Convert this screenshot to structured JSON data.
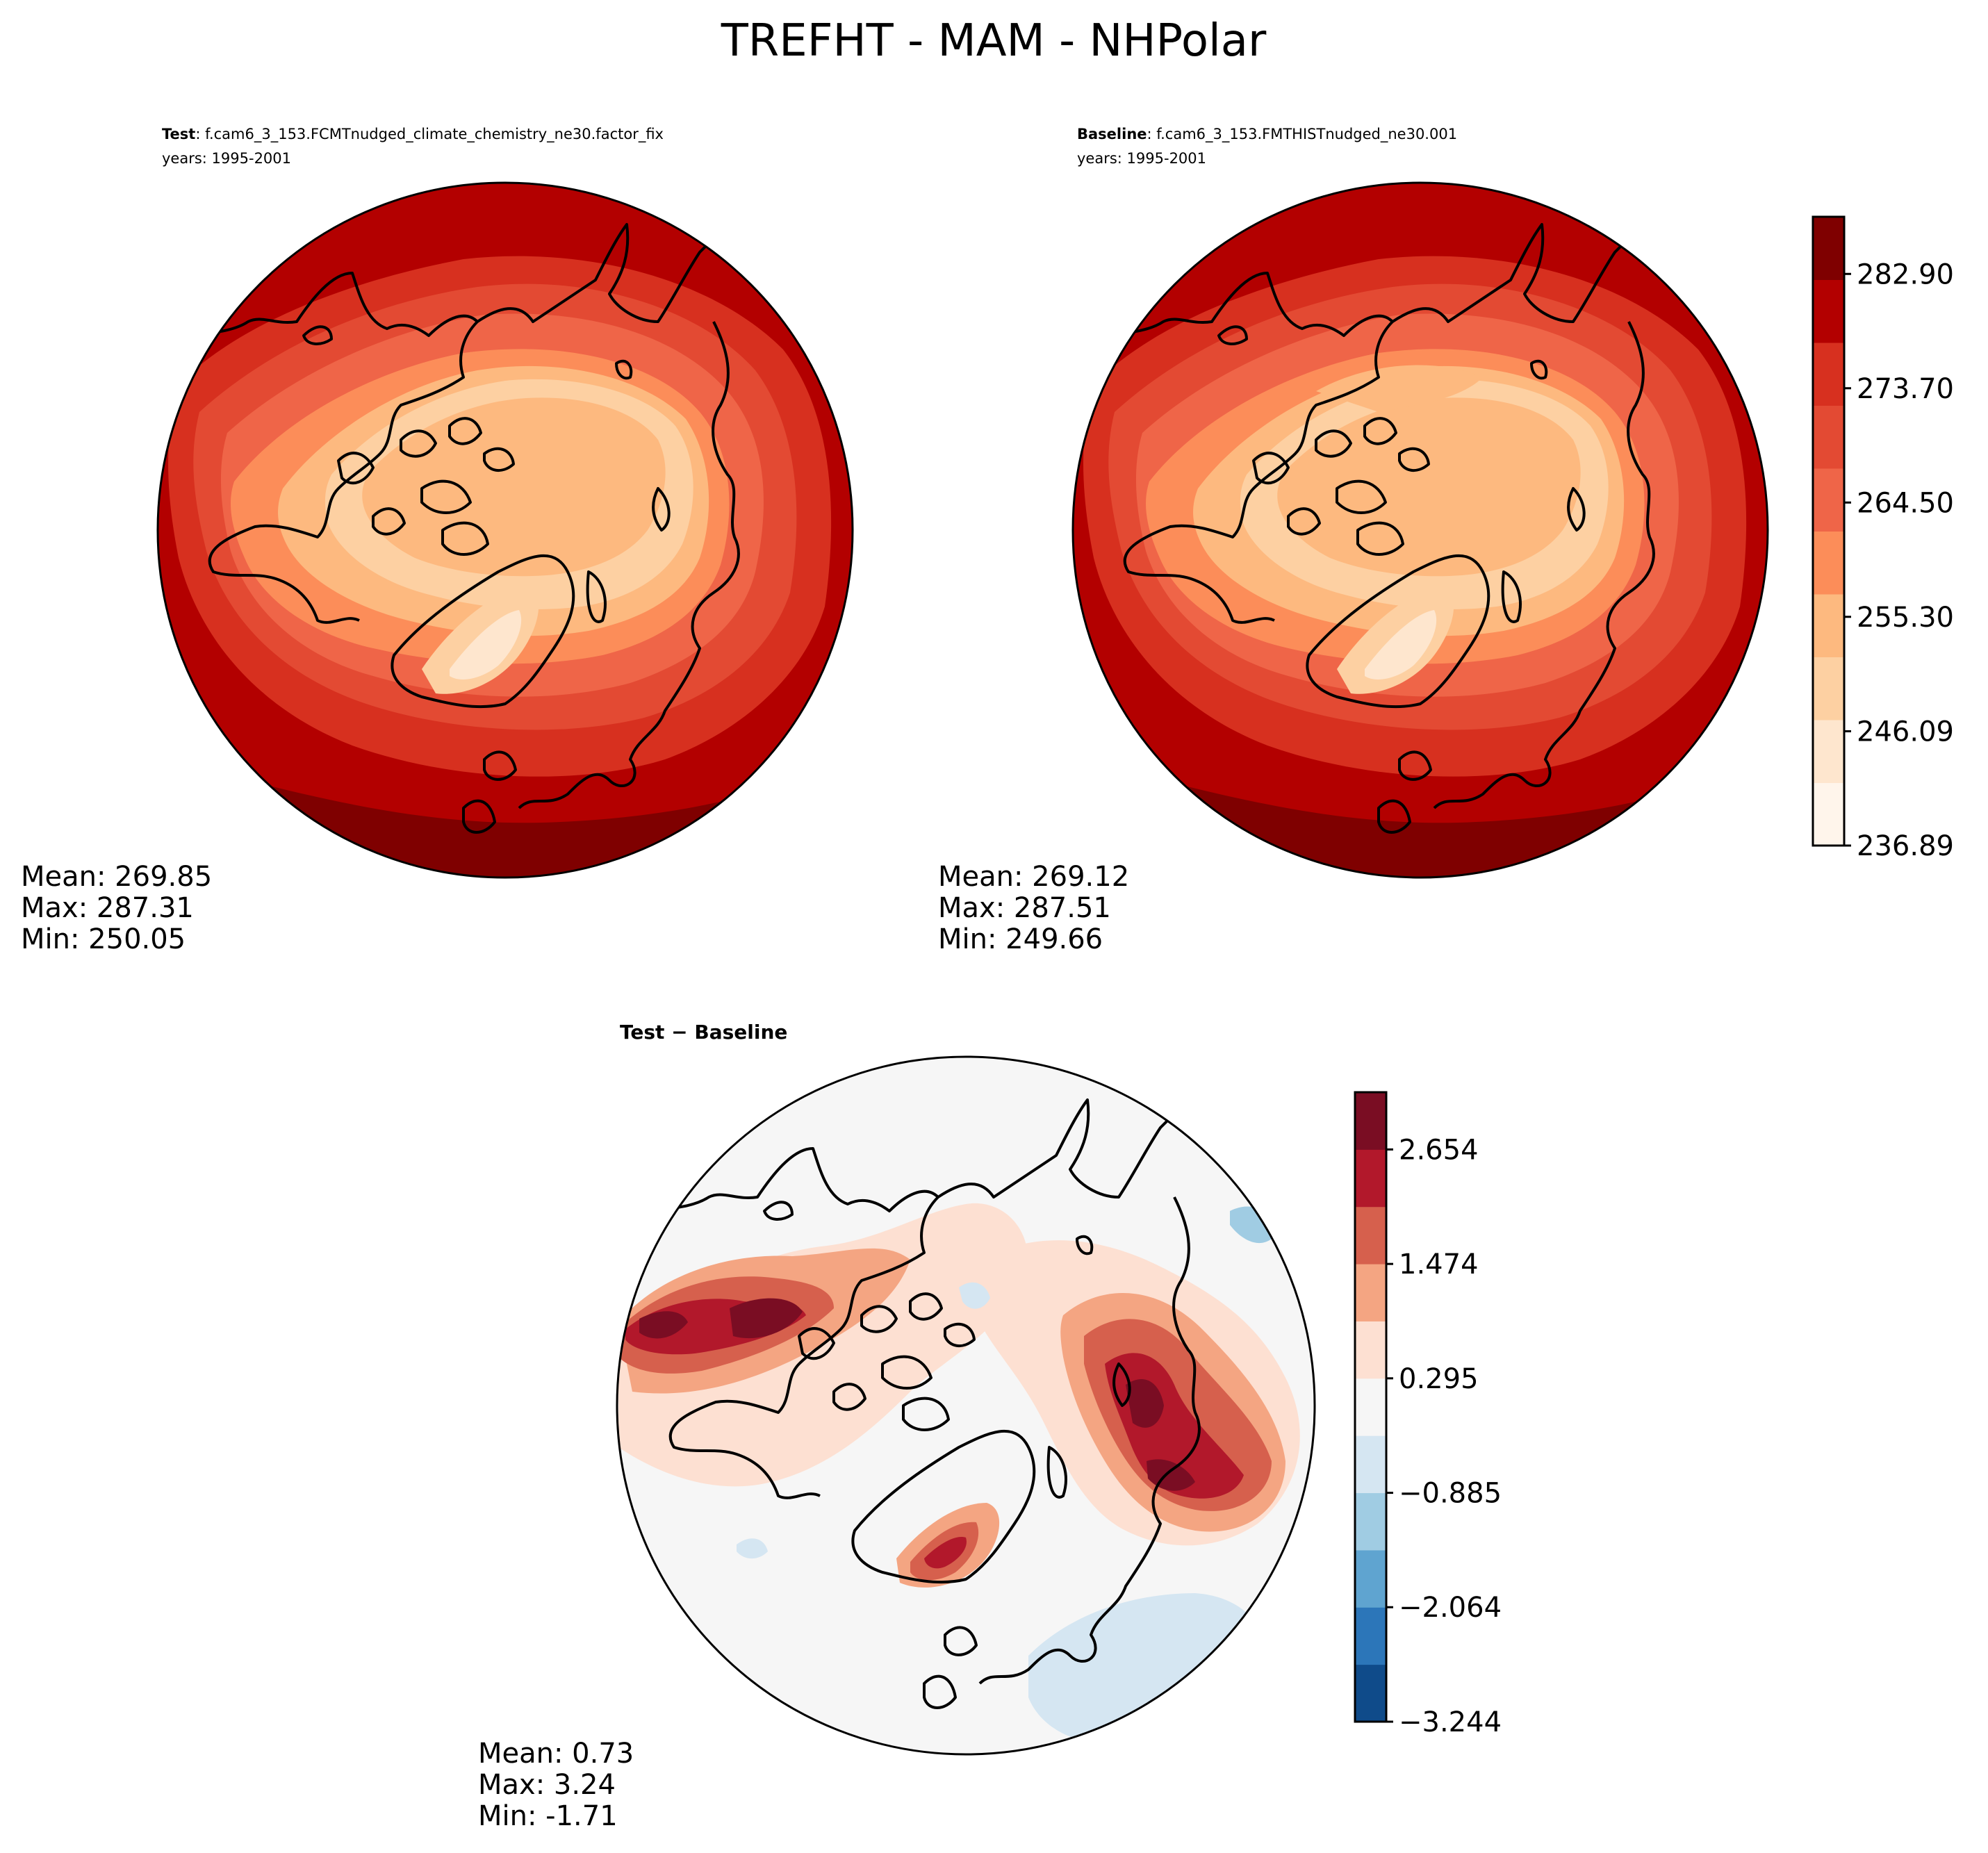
{
  "title": "TREFHT - MAM - NHPolar",
  "panels": [
    {
      "id": "test",
      "label_bold": "Test",
      "label_rest": ": f.cam6_3_153.FCMTnudged_climate_chemistry_ne30.factor_fix",
      "years": "years: 1995-2001",
      "stats": [
        "Mean: 269.85",
        "Max: 287.31",
        "Min: 250.05"
      ]
    },
    {
      "id": "baseline",
      "label_bold": "Baseline",
      "label_rest": ": f.cam6_3_153.FMTHISTnudged_ne30.001",
      "years": "years: 1995-2001",
      "stats": [
        "Mean: 269.12",
        "Max: 287.51",
        "Min: 249.66"
      ]
    },
    {
      "id": "diff",
      "label_bold": "Test − Baseline",
      "stats": [
        "Mean:  0.73",
        "Max:  3.24",
        "Min: -1.71"
      ]
    }
  ],
  "colorbars": {
    "absolute": {
      "colors": [
        "#fff5eb",
        "#fee6ce",
        "#fdd0a2",
        "#fdb97f",
        "#fc8d59",
        "#ef6548",
        "#e34a33",
        "#d7301f",
        "#b30000",
        "#7f0000"
      ],
      "tick_labels": [
        "236.89",
        "246.09",
        "255.30",
        "264.50",
        "273.70",
        "282.90"
      ],
      "tick_values": [
        236.89,
        246.09,
        255.3,
        264.5,
        273.7,
        282.9
      ],
      "range": [
        236.89,
        287.5
      ]
    },
    "difference": {
      "colors": [
        "#0f4b8a",
        "#2c76b9",
        "#5fa4d0",
        "#a0cce3",
        "#d5e6f2",
        "#f6f6f6",
        "#fde0d2",
        "#f4a582",
        "#d6604d",
        "#b2182b",
        "#7a0d23"
      ],
      "tick_labels": [
        "−3.244",
        "−2.064",
        "−0.885",
        "0.295",
        "1.474",
        "2.654"
      ],
      "tick_values": [
        -3.244,
        -2.064,
        -0.885,
        0.295,
        1.474,
        2.654
      ],
      "range": [
        -3.244,
        3.244
      ]
    }
  },
  "chart_data": [
    {
      "type": "heatmap",
      "projection": "north-polar-stereographic",
      "title": "Test: f.cam6_3_153.FCMTnudged_climate_chemistry_ne30.factor_fix",
      "variable": "TREFHT",
      "season": "MAM",
      "years": "1995-2001",
      "mean": 269.85,
      "max": 287.31,
      "min": 250.05,
      "colorbar_ticks": [
        236.89,
        246.09,
        255.3,
        264.5,
        273.7,
        282.9
      ]
    },
    {
      "type": "heatmap",
      "projection": "north-polar-stereographic",
      "title": "Baseline: f.cam6_3_153.FMTHISTnudged_ne30.001",
      "variable": "TREFHT",
      "season": "MAM",
      "years": "1995-2001",
      "mean": 269.12,
      "max": 287.51,
      "min": 249.66,
      "colorbar_ticks": [
        236.89,
        246.09,
        255.3,
        264.5,
        273.7,
        282.9
      ]
    },
    {
      "type": "heatmap",
      "projection": "north-polar-stereographic",
      "title": "Test − Baseline",
      "mean": 0.73,
      "max": 3.24,
      "min": -1.71,
      "colorbar_ticks": [
        -3.244,
        -2.064,
        -0.885,
        0.295,
        1.474,
        2.654
      ]
    }
  ]
}
